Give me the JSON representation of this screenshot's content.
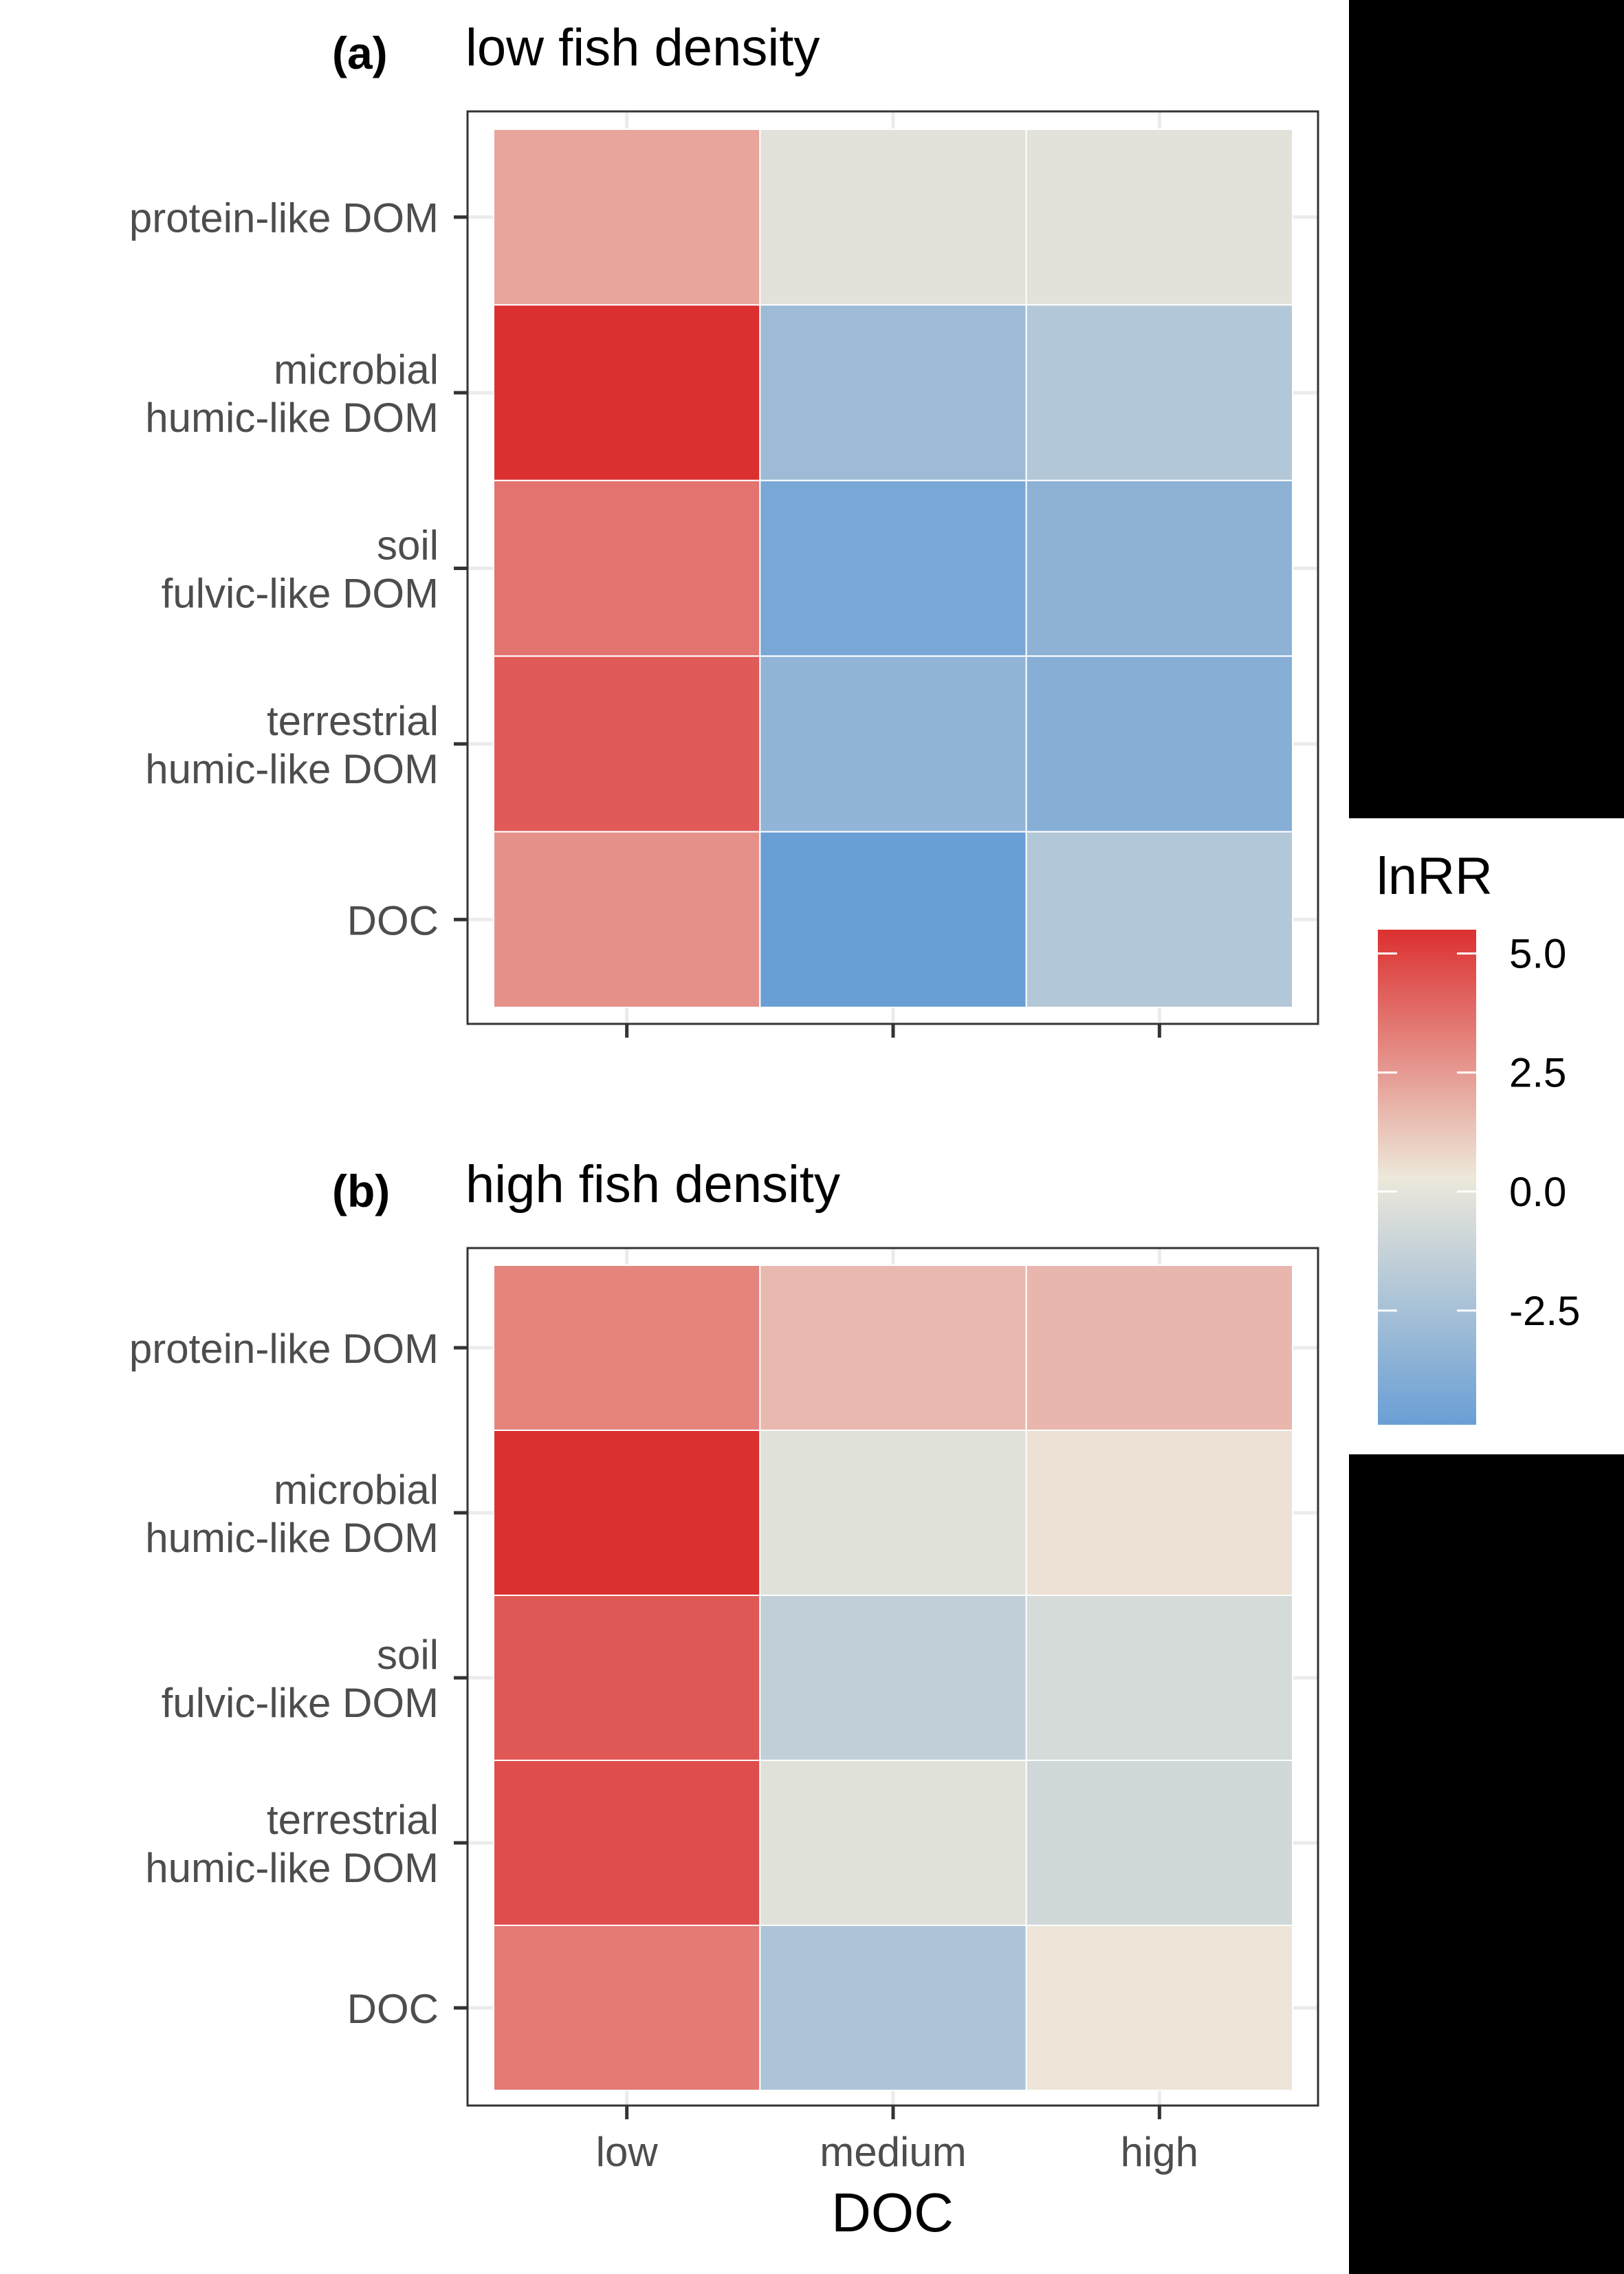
{
  "colors": {
    "high": "#DC3030",
    "mid": "#EDE8DA",
    "low": "#6A9FD5",
    "background": "#FFFFFF",
    "grid": "#EBEBEB",
    "frame": "#333333",
    "tick_label": "#4D4D4D"
  },
  "chart_data": [
    {
      "type": "heatmap",
      "panel_label": "(a)",
      "title": "low fish density",
      "x_categories": [
        "low",
        "medium",
        "high"
      ],
      "y_categories": [
        "protein-like DOM",
        "microbial\nhumic-like DOM",
        "soil\nfulvic-like DOM",
        "terrestrial\nhumic-like DOM",
        "DOC"
      ],
      "values": [
        [
          2.0,
          -0.4,
          -0.4
        ],
        [
          5.5,
          -3.0,
          -2.2
        ],
        [
          3.5,
          -4.3,
          -3.6
        ],
        [
          4.2,
          -3.4,
          -3.8
        ],
        [
          2.6,
          -4.9,
          -2.2
        ]
      ],
      "show_x_tick_labels": false,
      "grid": true
    },
    {
      "type": "heatmap",
      "panel_label": "(b)",
      "title": "high fish density",
      "x_categories": [
        "low",
        "medium",
        "high"
      ],
      "y_categories": [
        "protein-like DOM",
        "microbial\nhumic-like DOM",
        "soil\nfulvic-like DOM",
        "terrestrial\nhumic-like DOM",
        "DOC"
      ],
      "values": [
        [
          3.0,
          1.4,
          1.5
        ],
        [
          5.5,
          -0.5,
          0.2
        ],
        [
          4.3,
          -1.7,
          -0.9
        ],
        [
          4.6,
          -0.5,
          -1.1
        ],
        [
          3.3,
          -2.4,
          0.1
        ]
      ],
      "show_x_tick_labels": true,
      "xlabel": "DOC",
      "grid": true
    }
  ],
  "legend": {
    "title": "lnRR",
    "min": -4.9,
    "max": 5.5,
    "breaks": [
      5.0,
      2.5,
      0.0,
      -2.5
    ],
    "break_labels": [
      "5.0",
      "2.5",
      "0.0",
      "-2.5"
    ],
    "placement": "right"
  }
}
